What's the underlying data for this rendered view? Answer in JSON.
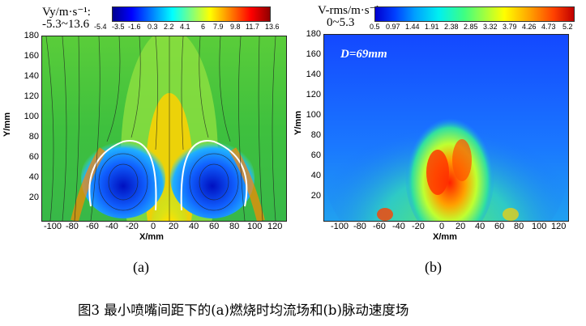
{
  "panel_a": {
    "title": "Vy/m·s⁻¹:",
    "range": "-5.3~13.6",
    "colorbar_ticks": [
      "-5.4",
      "-3.5",
      "-1.6",
      "0.3",
      "2.2",
      "4.1",
      "6",
      "7.9",
      "9.8",
      "11.7",
      "13.6"
    ],
    "y_ticks": [
      "180",
      "160",
      "140",
      "120",
      "100",
      "80",
      "60",
      "40",
      "20"
    ],
    "x_ticks": [
      "-100",
      "-80",
      "-60",
      "-40",
      "-20",
      "0",
      "20",
      "40",
      "60",
      "80",
      "100",
      "120"
    ],
    "xlabel": "X/mm",
    "ylabel": "Y/mm",
    "sublabel": "(a)"
  },
  "panel_b": {
    "title": "V-rms/m·s⁻¹",
    "range": "0~5.3",
    "colorbar_ticks": [
      "0.5",
      "0.97",
      "1.44",
      "1.91",
      "2.38",
      "2.85",
      "3.32",
      "3.79",
      "4.26",
      "4.73",
      "5.2"
    ],
    "y_ticks": [
      "180",
      "160",
      "140",
      "120",
      "100",
      "80",
      "60",
      "40",
      "20"
    ],
    "x_ticks": [
      "-100",
      "-80",
      "-60",
      "-40",
      "-20",
      "0",
      "20",
      "40",
      "60",
      "80",
      "100",
      "120"
    ],
    "xlabel": "X/mm",
    "ylabel": "Y/mm",
    "annotation": "D=69mm",
    "sublabel": "(b)"
  },
  "caption": "图3  最小喷嘴间距下的(a)燃烧时均流场和(b)脉动速度场",
  "colors": {
    "jet_blue": [
      "#00007f",
      "#0000ff",
      "#007fff",
      "#00ffff",
      "#7fff7f",
      "#ffff00",
      "#ff7f00",
      "#ff0000",
      "#7f0000"
    ],
    "panel_a_background": "#3ec03e",
    "panel_b_background": "#1a6cff"
  }
}
